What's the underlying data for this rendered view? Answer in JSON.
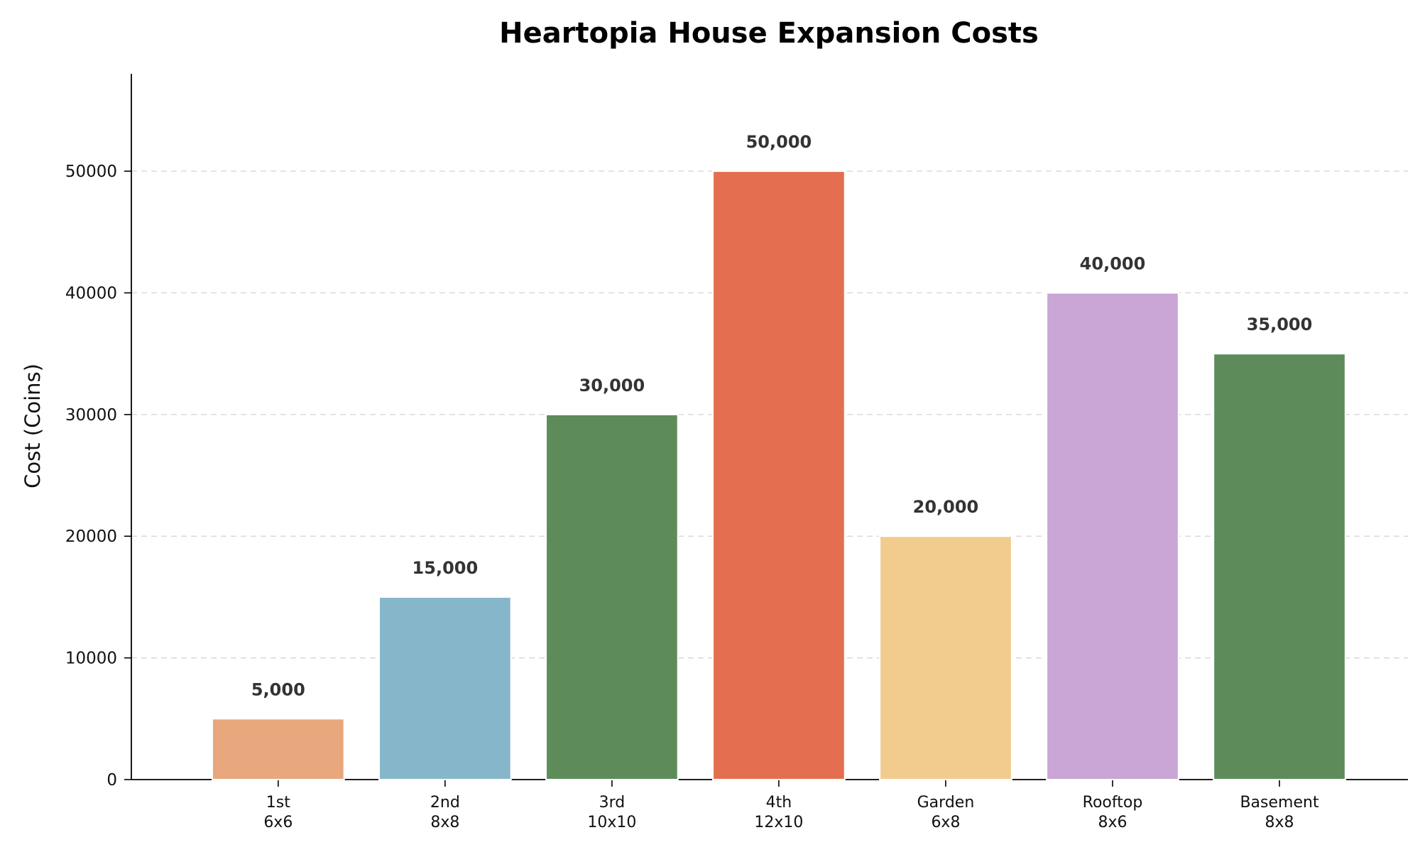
{
  "chart_data": {
    "type": "bar",
    "title": "Heartopia House Expansion Costs",
    "xlabel": "",
    "ylabel": "Cost (Coins)",
    "ylim": [
      0,
      58000
    ],
    "yticks": [
      0,
      10000,
      20000,
      30000,
      40000,
      50000
    ],
    "ytick_labels": [
      "0",
      "10000",
      "20000",
      "30000",
      "40000",
      "50000"
    ],
    "grid": {
      "y": true,
      "style": "dashed"
    },
    "categories": [
      [
        "1st",
        "6x6"
      ],
      [
        "2nd",
        "8x8"
      ],
      [
        "3rd",
        "10x10"
      ],
      [
        "4th",
        "12x10"
      ],
      [
        "Garden",
        "6x8"
      ],
      [
        "Rooftop",
        "8x6"
      ],
      [
        "Basement",
        "8x8"
      ]
    ],
    "values": [
      5000,
      15000,
      30000,
      50000,
      20000,
      40000,
      35000
    ],
    "value_labels": [
      "5,000",
      "15,000",
      "30,000",
      "50,000",
      "20,000",
      "40,000",
      "35,000"
    ],
    "colors": [
      "#E8A77C",
      "#86B6C9",
      "#5D8C5A",
      "#E46F50",
      "#F1CC8E",
      "#C9A6D6",
      "#5D8C5A"
    ]
  }
}
